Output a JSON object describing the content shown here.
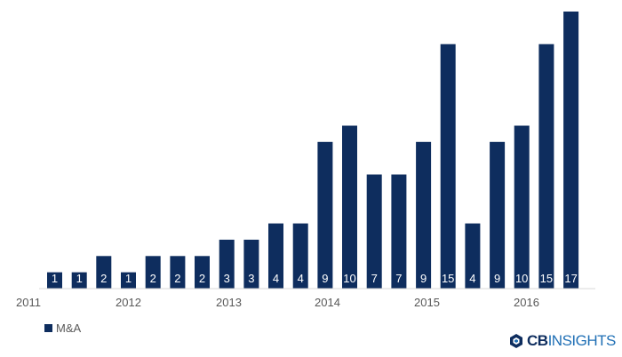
{
  "chart_data": {
    "type": "bar",
    "series": [
      {
        "name": "M&A",
        "values": [
          1,
          1,
          2,
          1,
          2,
          2,
          2,
          3,
          3,
          4,
          4,
          9,
          10,
          7,
          7,
          9,
          15,
          4,
          9,
          10,
          15,
          17
        ]
      }
    ],
    "x_tick_labels": [
      "2011",
      "2012",
      "2013",
      "2014",
      "2015",
      "2016"
    ],
    "ylim": [
      0,
      17
    ],
    "grid": false,
    "legend_position": "bottom-left",
    "colors": {
      "bar": "#0e2d5e",
      "text": "#595959",
      "axis": "#d9d9d9",
      "logo_cb": "#0e2d5e",
      "logo_accent": "#1f6fb5"
    }
  },
  "branding": {
    "cb": "CB",
    "insights": "INSIGHTS"
  }
}
